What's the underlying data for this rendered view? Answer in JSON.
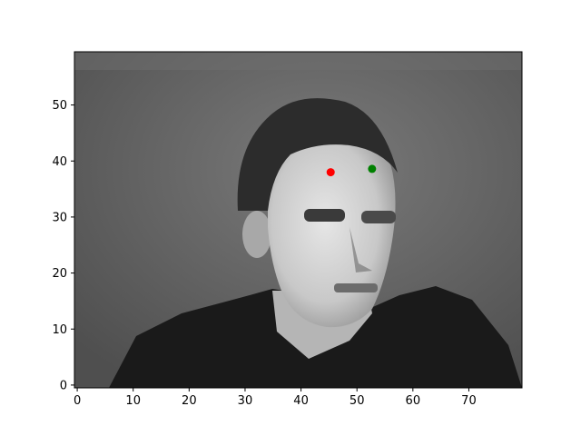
{
  "chart_data": {
    "type": "scatter",
    "background": {
      "kind": "grayscale-image",
      "description_visible": "pixelated grayscale portrait of a man in a dark shirt",
      "image_width": 80,
      "image_height": 60
    },
    "xlim": [
      -0.5,
      79.5
    ],
    "ylim": [
      59.5,
      -0.5
    ],
    "x_ticks": [
      0,
      10,
      20,
      30,
      40,
      50,
      60,
      70
    ],
    "y_ticks": [
      0,
      10,
      20,
      30,
      40,
      50
    ],
    "grid": false,
    "legend": "none",
    "series": [
      {
        "color": "#ff0000",
        "points": [
          [
            45.3,
            38.0
          ]
        ]
      },
      {
        "color": "#008000",
        "points": [
          [
            52.7,
            38.6
          ]
        ]
      }
    ],
    "title": "",
    "xlabel": "",
    "ylabel": ""
  }
}
